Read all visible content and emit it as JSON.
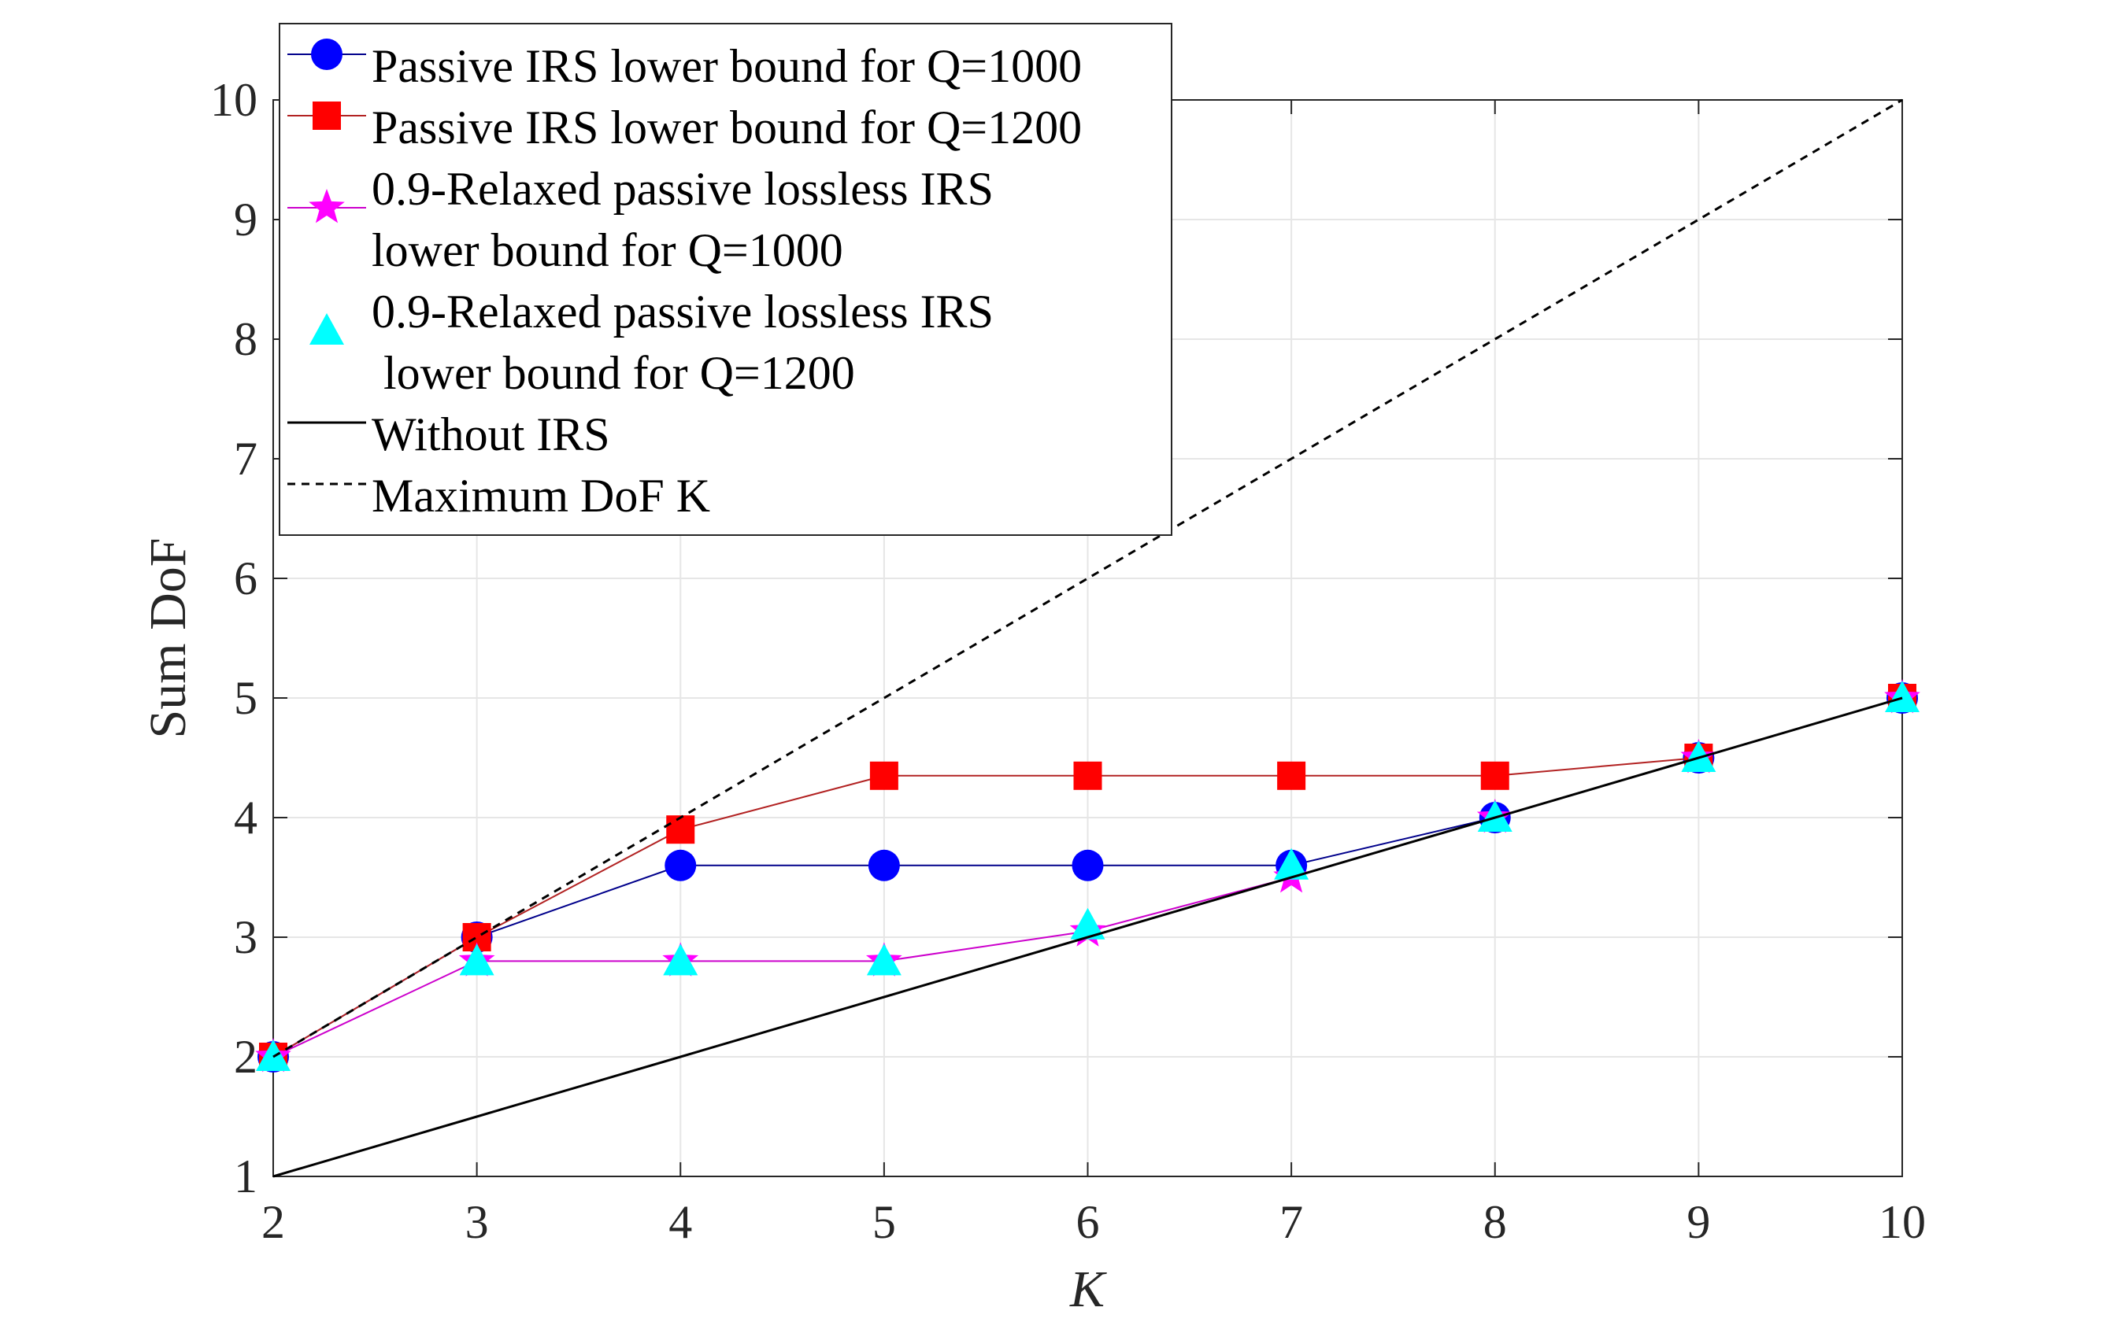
{
  "chart_data": {
    "type": "line",
    "title": "",
    "xlabel": "K",
    "ylabel": "Sum DoF",
    "xlim": [
      2,
      10
    ],
    "ylim": [
      1,
      10
    ],
    "grid": true,
    "legend_position": "top-left",
    "x_ticks": [
      "2",
      "3",
      "4",
      "5",
      "6",
      "7",
      "8",
      "9",
      "10"
    ],
    "y_ticks": [
      "1",
      "2",
      "3",
      "4",
      "5",
      "6",
      "7",
      "8",
      "9",
      "10"
    ],
    "x": [
      2,
      3,
      4,
      5,
      6,
      7,
      8,
      9,
      10
    ],
    "series": [
      {
        "name": "Passive IRS lower bound for Q=1000",
        "legend_lines": [
          "Passive IRS lower bound for Q=1000"
        ],
        "values": [
          2,
          3,
          3.6,
          3.6,
          3.6,
          3.6,
          4,
          4.5,
          5
        ],
        "color": "#0000ff",
        "line_color": "#00008b",
        "marker": "circle",
        "line_style": "solid"
      },
      {
        "name": "Passive IRS lower bound for Q=1200",
        "legend_lines": [
          "Passive IRS lower bound for Q=1200"
        ],
        "values": [
          2,
          3,
          3.9,
          4.35,
          4.35,
          4.35,
          4.35,
          4.5,
          5
        ],
        "color": "#ff0000",
        "line_color": "#b22222",
        "marker": "square",
        "line_style": "solid"
      },
      {
        "name": "0.9-Relaxed passive lossless IRS lower bound for Q=1000",
        "legend_lines": [
          "0.9-Relaxed passive lossless IRS",
          "lower bound for Q=1000"
        ],
        "values": [
          2,
          2.8,
          2.8,
          2.8,
          3.05,
          3.5,
          4,
          4.5,
          5
        ],
        "color": "#ff00ff",
        "line_color": "#cc00cc",
        "marker": "star",
        "line_style": "solid"
      },
      {
        "name": "0.9-Relaxed passive lossless IRS lower bound for Q=1200",
        "legend_lines": [
          "0.9-Relaxed passive lossless IRS",
          " lower bound for Q=1200"
        ],
        "values": [
          2,
          2.8,
          2.8,
          2.8,
          3.1,
          3.6,
          4,
          4.5,
          5
        ],
        "color": "#00ffff",
        "line_color": "none",
        "marker": "triangle",
        "line_style": "none"
      },
      {
        "name": "Without IRS",
        "legend_lines": [
          "Without IRS"
        ],
        "values": [
          1,
          1.5,
          2,
          2.5,
          3,
          3.5,
          4,
          4.5,
          5
        ],
        "color": "#000000",
        "line_color": "#000000",
        "marker": "none",
        "line_style": "solid"
      },
      {
        "name": "Maximum DoF K",
        "legend_lines": [
          "Maximum DoF K"
        ],
        "values": [
          2,
          3,
          4,
          5,
          6,
          7,
          8,
          9,
          10
        ],
        "color": "#000000",
        "line_color": "#000000",
        "marker": "none",
        "line_style": "dashed"
      }
    ]
  }
}
